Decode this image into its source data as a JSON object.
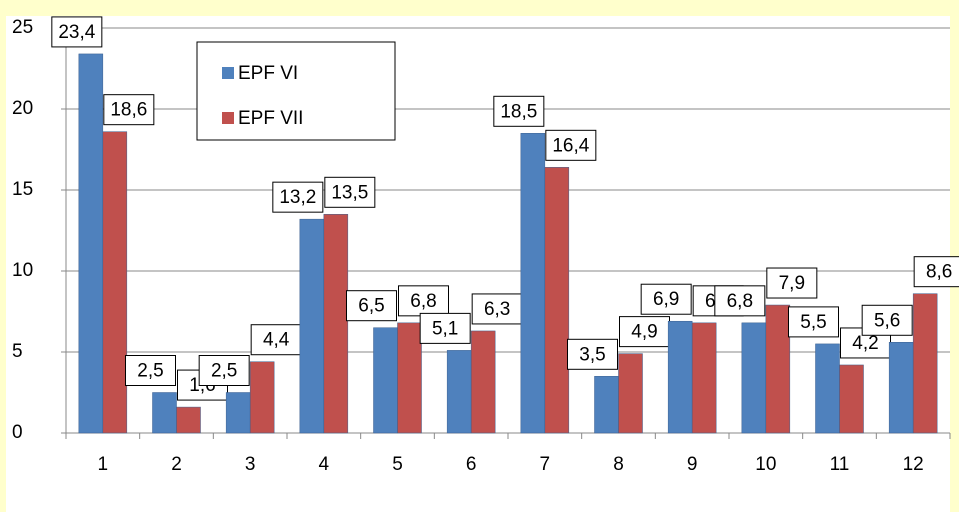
{
  "chart_data": {
    "type": "bar",
    "categories": [
      "1",
      "2",
      "3",
      "4",
      "5",
      "6",
      "7",
      "8",
      "9",
      "10",
      "11",
      "12"
    ],
    "series": [
      {
        "name": "EPF VI",
        "color": "#4f81bd",
        "values": [
          23.4,
          2.5,
          2.5,
          13.2,
          6.5,
          5.1,
          18.5,
          3.5,
          6.9,
          6.8,
          5.5,
          5.6
        ],
        "value_labels": [
          "23,4",
          "2,5",
          "2,5",
          "13,2",
          "6,5",
          "5,1",
          "18,5",
          "3,5",
          "6,9",
          "6,8",
          "5,5",
          "5,6"
        ]
      },
      {
        "name": "EPF VII",
        "color": "#c0504d",
        "values": [
          18.6,
          1.6,
          4.4,
          13.5,
          6.8,
          6.3,
          16.4,
          4.9,
          6.8,
          7.9,
          4.2,
          8.6
        ],
        "value_labels": [
          "18,6",
          "1,6",
          "4,4",
          "13,5",
          "6,8",
          "6,3",
          "16,4",
          "4,9",
          "6,8",
          "7,9",
          "4,2",
          "8,6"
        ]
      }
    ],
    "ylim": [
      0,
      25
    ],
    "yticks": [
      0,
      5,
      10,
      15,
      20,
      25
    ],
    "grid": true,
    "legend": "upper-left"
  }
}
